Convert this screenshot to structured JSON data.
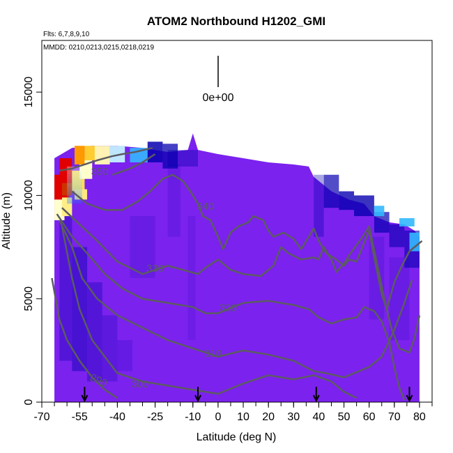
{
  "chart_data": {
    "type": "heatmap",
    "title": "ATOM2 Northbound H1202_GMI",
    "subtitle_flights": "Flts: 6,7,8,9,10",
    "subtitle_dates": "MMDD: 0210,0213,0215,0218,0219",
    "xlabel": "Latitude (deg N)",
    "ylabel": "Altitude (m)",
    "xlim": [
      -70,
      85
    ],
    "ylim": [
      0,
      17500
    ],
    "x_ticks": [
      -70,
      -55,
      -40,
      -25,
      -10,
      0,
      10,
      20,
      30,
      40,
      50,
      60,
      70,
      80
    ],
    "x_tick_labels": [
      "-70",
      "-55",
      "-40",
      "-25",
      "-10",
      "0",
      "10",
      "20",
      "30",
      "40",
      "50",
      "60",
      "70",
      "80"
    ],
    "y_ticks": [
      0,
      5000,
      10000,
      15000
    ],
    "y_tick_labels": [
      "0",
      "5000",
      "10000",
      "15000"
    ],
    "scale_label": "0e+00",
    "background_color": "#7b22ee",
    "colors": {
      "background": "#7b22ee",
      "contour": "#5c5c60",
      "dark_blue": "#0800b0",
      "light_blue": "#33b8ff",
      "red": "#e00000",
      "orange": "#ff9900"
    },
    "flight_arrows_lat": [
      -53,
      -8,
      39,
      76
    ],
    "contours": [
      {
        "label": "290",
        "points": [
          [
            -66,
            6000
          ],
          [
            -63,
            4000
          ],
          [
            -60,
            3000
          ],
          [
            -55,
            2000
          ],
          [
            -50,
            1200
          ],
          [
            -45,
            600
          ],
          [
            -40,
            200
          ]
        ]
      },
      {
        "label": "300",
        "points": [
          [
            -62,
            8500
          ],
          [
            -58,
            6000
          ],
          [
            -55,
            4500
          ],
          [
            -50,
            3000
          ],
          [
            -45,
            2200
          ],
          [
            -40,
            1400
          ],
          [
            -30,
            1000
          ],
          [
            -20,
            800
          ],
          [
            -10,
            600
          ],
          [
            0,
            400
          ],
          [
            10,
            900
          ],
          [
            20,
            1300
          ],
          [
            30,
            1100
          ],
          [
            38,
            1300
          ],
          [
            45,
            1000
          ],
          [
            50,
            500
          ],
          [
            55,
            200
          ]
        ]
      },
      {
        "label": "310",
        "points": [
          [
            -63,
            8800
          ],
          [
            -58,
            7500
          ],
          [
            -54,
            6000
          ],
          [
            -48,
            5000
          ],
          [
            -40,
            4200
          ],
          [
            -30,
            3600
          ],
          [
            -20,
            3000
          ],
          [
            -10,
            2600
          ],
          [
            0,
            2200
          ],
          [
            10,
            2500
          ],
          [
            20,
            2300
          ],
          [
            30,
            2000
          ],
          [
            38,
            1500
          ],
          [
            43,
            1400
          ],
          [
            50,
            1200
          ],
          [
            60,
            1700
          ],
          [
            65,
            2200
          ],
          [
            70,
            3500
          ],
          [
            74,
            4800
          ],
          [
            77,
            5900
          ]
        ]
      },
      {
        "label": "320",
        "points": [
          [
            -64,
            9100
          ],
          [
            -58,
            8000
          ],
          [
            -52,
            7200
          ],
          [
            -45,
            6200
          ],
          [
            -38,
            5500
          ],
          [
            -30,
            5000
          ],
          [
            -20,
            4800
          ],
          [
            -10,
            4600
          ],
          [
            -5,
            4300
          ],
          [
            0,
            4300
          ],
          [
            10,
            4800
          ],
          [
            20,
            4900
          ],
          [
            30,
            4700
          ],
          [
            36,
            4500
          ],
          [
            40,
            4100
          ],
          [
            45,
            3800
          ],
          [
            50,
            4000
          ],
          [
            55,
            4100
          ],
          [
            58,
            4600
          ],
          [
            62,
            4400
          ],
          [
            65,
            3900
          ],
          [
            68,
            2900
          ],
          [
            70,
            1700
          ],
          [
            72,
            700
          ],
          [
            74,
            100
          ]
        ]
      },
      {
        "label": "330",
        "points": [
          [
            -62,
            9400
          ],
          [
            -55,
            8600
          ],
          [
            -48,
            7800
          ],
          [
            -40,
            6800
          ],
          [
            -30,
            6200
          ],
          [
            -20,
            6600
          ],
          [
            -14,
            6400
          ],
          [
            -8,
            6200
          ],
          [
            -5,
            6500
          ],
          [
            0,
            6900
          ],
          [
            5,
            6400
          ],
          [
            10,
            6200
          ],
          [
            17,
            6100
          ],
          [
            22,
            6600
          ],
          [
            25,
            7500
          ],
          [
            28,
            7200
          ],
          [
            33,
            6900
          ],
          [
            38,
            7000
          ],
          [
            40,
            6900
          ],
          [
            42,
            7500
          ],
          [
            45,
            6900
          ],
          [
            47,
            6300
          ],
          [
            50,
            6700
          ],
          [
            52,
            7100
          ],
          [
            55,
            7600
          ],
          [
            58,
            8100
          ],
          [
            60,
            8500
          ],
          [
            63,
            6800
          ],
          [
            66,
            5000
          ],
          [
            69,
            3500
          ],
          [
            72,
            2600
          ],
          [
            76,
            2400
          ],
          [
            78,
            3100
          ],
          [
            80,
            4200
          ]
        ]
      },
      {
        "label": "340",
        "points": [
          [
            -58,
            10200
          ],
          [
            -52,
            9600
          ],
          [
            -45,
            9300
          ],
          [
            -38,
            9300
          ],
          [
            -32,
            9700
          ],
          [
            -27,
            10200
          ],
          [
            -22,
            10800
          ],
          [
            -18,
            11000
          ],
          [
            -14,
            10700
          ],
          [
            -11,
            10200
          ],
          [
            -8,
            9600
          ],
          [
            -6,
            9000
          ],
          [
            -3,
            8800
          ],
          [
            0,
            8000
          ],
          [
            2,
            7400
          ],
          [
            5,
            8200
          ],
          [
            8,
            8500
          ],
          [
            12,
            8700
          ],
          [
            14,
            9000
          ],
          [
            18,
            8800
          ],
          [
            20,
            8300
          ],
          [
            22,
            8000
          ],
          [
            26,
            8200
          ],
          [
            30,
            7900
          ],
          [
            33,
            7400
          ],
          [
            36,
            8000
          ],
          [
            38,
            8400
          ],
          [
            40,
            7800
          ],
          [
            43,
            7200
          ],
          [
            47,
            6900
          ],
          [
            50,
            6600
          ],
          [
            52,
            6900
          ],
          [
            55,
            6800
          ],
          [
            58,
            7700
          ],
          [
            60,
            8300
          ],
          [
            62,
            7000
          ],
          [
            65,
            5200
          ],
          [
            67,
            4500
          ],
          [
            70,
            5800
          ],
          [
            73,
            6600
          ],
          [
            76,
            7300
          ],
          [
            79,
            7600
          ],
          [
            81,
            7800
          ]
        ]
      },
      {
        "label": "350",
        "points": [
          [
            -63,
            11200
          ],
          [
            -58,
            11300
          ],
          [
            -53,
            11500
          ],
          [
            -48,
            11700
          ],
          [
            -42,
            11900
          ],
          [
            -38,
            12000
          ],
          [
            -33,
            12100
          ],
          [
            -26,
            12300
          ]
        ]
      },
      {
        "label": "",
        "points": [
          [
            -42,
            11000
          ],
          [
            -35,
            11300
          ],
          [
            -30,
            11600
          ],
          [
            -25,
            12000
          ]
        ]
      }
    ]
  }
}
